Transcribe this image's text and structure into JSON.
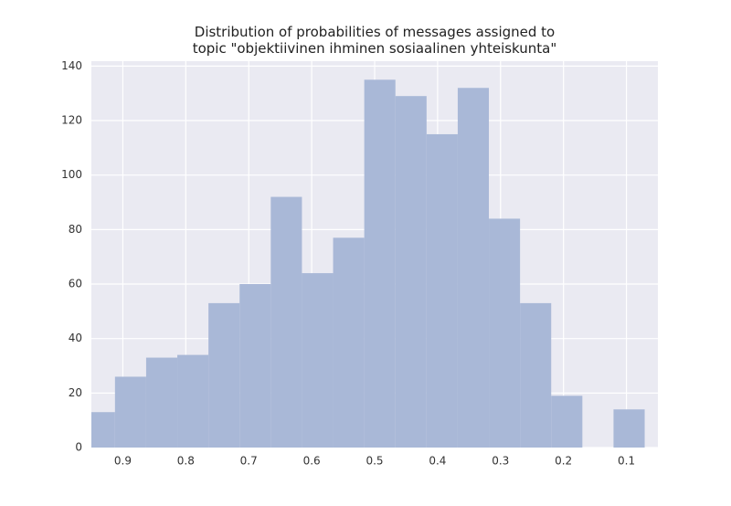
{
  "chart_data": {
    "type": "histogram",
    "title": "Distribution of probabilities of messages assigned to\ntopic \"objektiivinen ihminen sosiaalinen yhteiskunta\"",
    "bins": [
      0.962,
      0.9125,
      0.863,
      0.8135,
      0.764,
      0.7145,
      0.665,
      0.6155,
      0.566,
      0.5165,
      0.467,
      0.4175,
      0.368,
      0.3185,
      0.269,
      0.2195,
      0.17,
      0.1205,
      0.071
    ],
    "values": [
      13,
      26,
      33,
      34,
      53,
      60,
      92,
      64,
      77,
      135,
      129,
      115,
      132,
      84,
      53,
      19,
      0,
      14
    ],
    "color": "#a9b8d7",
    "xlim": [
      0.95,
      0.05
    ],
    "xticks": [
      0.9,
      0.8,
      0.7,
      0.6,
      0.5,
      0.4,
      0.3,
      0.2,
      0.1
    ],
    "ylim": [
      0,
      141.8
    ],
    "yticks": [
      0,
      20,
      40,
      60,
      80,
      100,
      120,
      140
    ],
    "grid": true
  }
}
